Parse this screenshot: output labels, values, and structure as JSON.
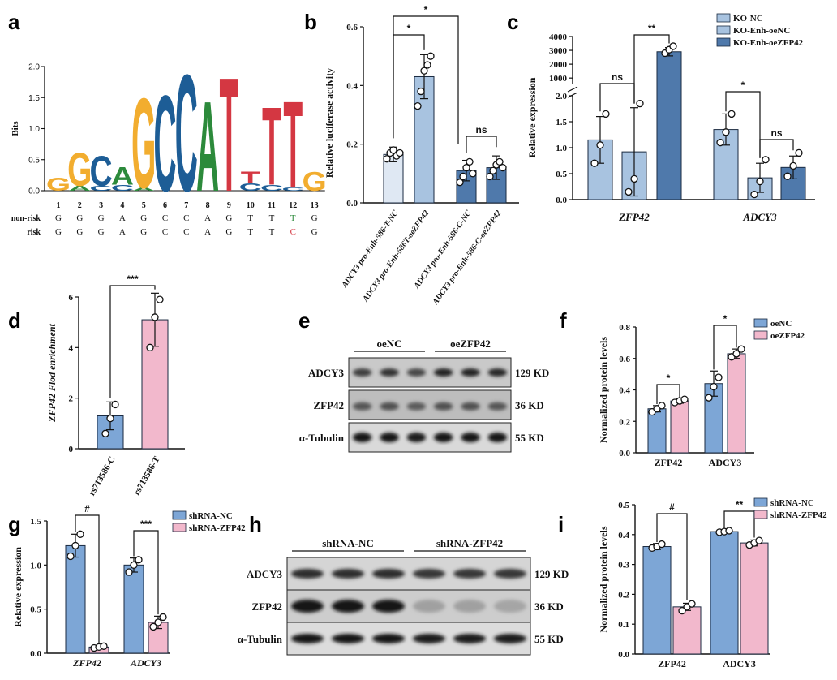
{
  "panel_labels": {
    "a": "a",
    "b": "b",
    "c": "c",
    "d": "d",
    "e": "e",
    "f": "f",
    "g": "g",
    "h": "h",
    "i": "i"
  },
  "colors": {
    "blue_light": "#dfe8f3",
    "blue_mid": "#a8c3e0",
    "blue_dark": "#4f79ab",
    "blue_f": "#7da6d6",
    "pink": "#f2b8cc",
    "pink_d": "#e4a9c8",
    "red": "#d43742",
    "green": "#2c8a3b",
    "orange": "#f2ad2f",
    "navy": "#1d5d96",
    "logo_gray": "#555555",
    "blot_text": "#111111"
  },
  "chart_data": [
    {
      "id": "a",
      "type": "sequence-logo",
      "ylabel": "Bits",
      "yticks": [
        "0.0",
        "0.5",
        "1.0",
        "1.5",
        "2.0"
      ],
      "ylim": [
        0,
        2
      ],
      "positions": [
        "1",
        "2",
        "3",
        "4",
        "5",
        "6",
        "7",
        "8",
        "9",
        "10",
        "11",
        "12",
        "13"
      ],
      "columns": [
        [
          {
            "l": "G",
            "h": 0.22
          }
        ],
        [
          {
            "l": "A",
            "h": 0.08
          },
          {
            "l": "G",
            "h": 0.55
          }
        ],
        [
          {
            "l": "C",
            "h": 0.08
          },
          {
            "l": "C",
            "h": 0.5
          }
        ],
        [
          {
            "l": "C",
            "h": 0.1
          },
          {
            "l": "A",
            "h": 0.3
          }
        ],
        [
          {
            "l": "A",
            "h": 0.05
          },
          {
            "l": "G",
            "h": 1.5
          }
        ],
        [
          {
            "l": "C",
            "h": 1.6
          }
        ],
        [
          {
            "l": "C",
            "h": 1.95
          }
        ],
        [
          {
            "l": "A",
            "h": 1.5
          }
        ],
        [
          {
            "l": "T",
            "h": 1.9
          }
        ],
        [
          {
            "l": "C",
            "h": 0.12
          },
          {
            "l": "T",
            "h": 0.2
          }
        ],
        [
          {
            "l": "C",
            "h": 0.1
          },
          {
            "l": "T",
            "h": 1.3
          }
        ],
        [
          {
            "l": "C",
            "h": 0.05
          },
          {
            "l": "T",
            "h": 1.45
          }
        ],
        [
          {
            "l": "G",
            "h": 0.32
          }
        ]
      ],
      "rows": [
        {
          "label": "non-risk",
          "seq": [
            "G",
            "G",
            "G",
            "A",
            "G",
            "C",
            "C",
            "A",
            "G",
            "T",
            "T",
            "T",
            "G"
          ],
          "highlight": 11
        },
        {
          "label": "risk",
          "seq": [
            "G",
            "G",
            "G",
            "A",
            "G",
            "C",
            "C",
            "A",
            "G",
            "T",
            "T",
            "C",
            "G"
          ],
          "highlight": 11
        }
      ]
    },
    {
      "id": "b",
      "type": "bar",
      "ylabel": "Relative luciferase activity",
      "ylim": [
        0,
        0.6
      ],
      "yticks": [
        "0.0",
        "0.2",
        "0.4",
        "0.6"
      ],
      "categories": [
        "ADCY3 pro-Enh-586-T-NC",
        "ADCY3 pro-Enh-586T-oeZFP42",
        "ADCY3 pro-Enh-586-C-NC",
        "ADCY3 pro-Enh-586-C-oeZFP42"
      ],
      "values": [
        0.165,
        0.43,
        0.11,
        0.12
      ],
      "errors": [
        0.025,
        0.075,
        0.035,
        0.04
      ],
      "points": [
        [
          0.15,
          0.17,
          0.18,
          0.16,
          0.17
        ],
        [
          0.33,
          0.38,
          0.45,
          0.47,
          0.5
        ],
        [
          0.07,
          0.09,
          0.12,
          0.14,
          0.1
        ],
        [
          0.09,
          0.11,
          0.13,
          0.14,
          0.12
        ]
      ],
      "sig": [
        {
          "text": "*"
        },
        {
          "text": "*"
        },
        {
          "text": "ns"
        }
      ]
    },
    {
      "id": "c",
      "type": "bar",
      "ylabel": "Relative expression",
      "lower_ticks": [
        "0.0",
        "0.5",
        "1.0",
        "1.5",
        "2.0"
      ],
      "upper_ticks": [
        "1000",
        "2000",
        "3000",
        "4000"
      ],
      "categories": [
        "ZFP42",
        "ADCY3"
      ],
      "series": [
        {
          "name": "KO-NC",
          "values": [
            1.15,
            1.35
          ],
          "errors": [
            0.45,
            0.3
          ],
          "points": [
            [
              0.7,
              1.05,
              1.65
            ],
            [
              1.1,
              1.3,
              1.65
            ]
          ]
        },
        {
          "name": "KO-Enh-oeNC",
          "values": [
            0.92,
            0.42
          ],
          "errors": [
            0.85,
            0.28
          ],
          "points": [
            [
              0.15,
              0.4,
              1.85
            ],
            [
              0.1,
              0.35,
              0.77
            ]
          ]
        },
        {
          "name": "KO-Enh-oeZFP42",
          "values": [
            2900,
            0.62
          ],
          "errors": [
            300,
            0.22
          ],
          "points": [
            [
              2800,
              3050,
              3300
            ],
            [
              0.45,
              0.65,
              0.9
            ]
          ]
        }
      ],
      "sig": [
        {
          "text": "ns"
        },
        {
          "text": "**"
        },
        {
          "text": "*"
        },
        {
          "text": "ns"
        }
      ]
    },
    {
      "id": "d",
      "type": "bar",
      "ylabel": "ZFP42 Flod enrichment",
      "ylim": [
        0,
        6
      ],
      "yticks": [
        "0",
        "2",
        "4",
        "6"
      ],
      "categories": [
        "rs713586-C",
        "rs713586-T"
      ],
      "values": [
        1.3,
        5.1
      ],
      "errors": [
        0.55,
        1.05
      ],
      "points": [
        [
          0.6,
          1.2,
          1.75
        ],
        [
          4.0,
          5.2,
          5.9
        ]
      ],
      "sig": [
        {
          "text": "***"
        }
      ]
    },
    {
      "id": "f",
      "type": "bar",
      "ylabel": "Normalized protein levels",
      "ylim": [
        0,
        0.8
      ],
      "yticks": [
        "0.0",
        "0.2",
        "0.4",
        "0.6",
        "0.8"
      ],
      "categories": [
        "ZFP42",
        "ADCY3"
      ],
      "series": [
        {
          "name": "oeNC",
          "values": [
            0.28,
            0.44
          ],
          "errors": [
            0.02,
            0.08
          ],
          "points": [
            [
              0.26,
              0.28,
              0.3
            ],
            [
              0.35,
              0.42,
              0.48
            ]
          ]
        },
        {
          "name": "oeZFP42",
          "values": [
            0.33,
            0.63
          ],
          "errors": [
            0.015,
            0.03
          ],
          "points": [
            [
              0.32,
              0.33,
              0.34
            ],
            [
              0.61,
              0.63,
              0.66
            ]
          ]
        }
      ],
      "sig": [
        {
          "text": "*"
        },
        {
          "text": "*"
        }
      ]
    },
    {
      "id": "g",
      "type": "bar",
      "ylabel": "Relative expression",
      "ylim": [
        0,
        1.5
      ],
      "yticks": [
        "0.0",
        "0.5",
        "1.0",
        "1.5"
      ],
      "categories": [
        "ZFP42",
        "ADCY3"
      ],
      "series": [
        {
          "name": "shRNA-NC",
          "values": [
            1.22,
            1.0
          ],
          "errors": [
            0.13,
            0.08
          ],
          "points": [
            [
              1.1,
              1.22,
              1.35
            ],
            [
              0.92,
              1.0,
              1.06
            ]
          ]
        },
        {
          "name": "shRNA-ZFP42",
          "values": [
            0.07,
            0.35
          ],
          "errors": [
            0.02,
            0.07
          ],
          "points": [
            [
              0.06,
              0.07,
              0.08
            ],
            [
              0.3,
              0.35,
              0.41
            ]
          ]
        }
      ],
      "sig": [
        {
          "text": "#"
        },
        {
          "text": "***"
        }
      ]
    },
    {
      "id": "i",
      "type": "bar",
      "ylabel": "Normalized protein levels",
      "ylim": [
        0,
        0.5
      ],
      "yticks": [
        "0.0",
        "0.1",
        "0.2",
        "0.3",
        "0.4",
        "0.5"
      ],
      "categories": [
        "ZFP42",
        "ADCY3"
      ],
      "series": [
        {
          "name": "shRNA-NC",
          "values": [
            0.36,
            0.41
          ],
          "errors": [
            0.01,
            0.004
          ],
          "points": [
            [
              0.355,
              0.36,
              0.368
            ],
            [
              0.408,
              0.41,
              0.413
            ]
          ]
        },
        {
          "name": "shRNA-ZFP42",
          "values": [
            0.158,
            0.372
          ],
          "errors": [
            0.012,
            0.01
          ],
          "points": [
            [
              0.145,
              0.158,
              0.168
            ],
            [
              0.365,
              0.372,
              0.38
            ]
          ]
        }
      ],
      "sig": [
        {
          "text": "#"
        },
        {
          "text": "**"
        }
      ]
    }
  ],
  "blot_e": {
    "groups": [
      "oeNC",
      "oeZFP42"
    ],
    "proteins": [
      "ADCY3",
      "ZFP42",
      "α-Tubulin"
    ],
    "sizes": [
      "129 KD",
      "36 KD",
      "55 KD"
    ]
  },
  "blot_h": {
    "groups": [
      "shRNA-NC",
      "shRNA-ZFP42"
    ],
    "proteins": [
      "ADCY3",
      "ZFP42",
      "α-Tubulin"
    ],
    "sizes": [
      "129 KD",
      "36 KD",
      "55 KD"
    ]
  }
}
